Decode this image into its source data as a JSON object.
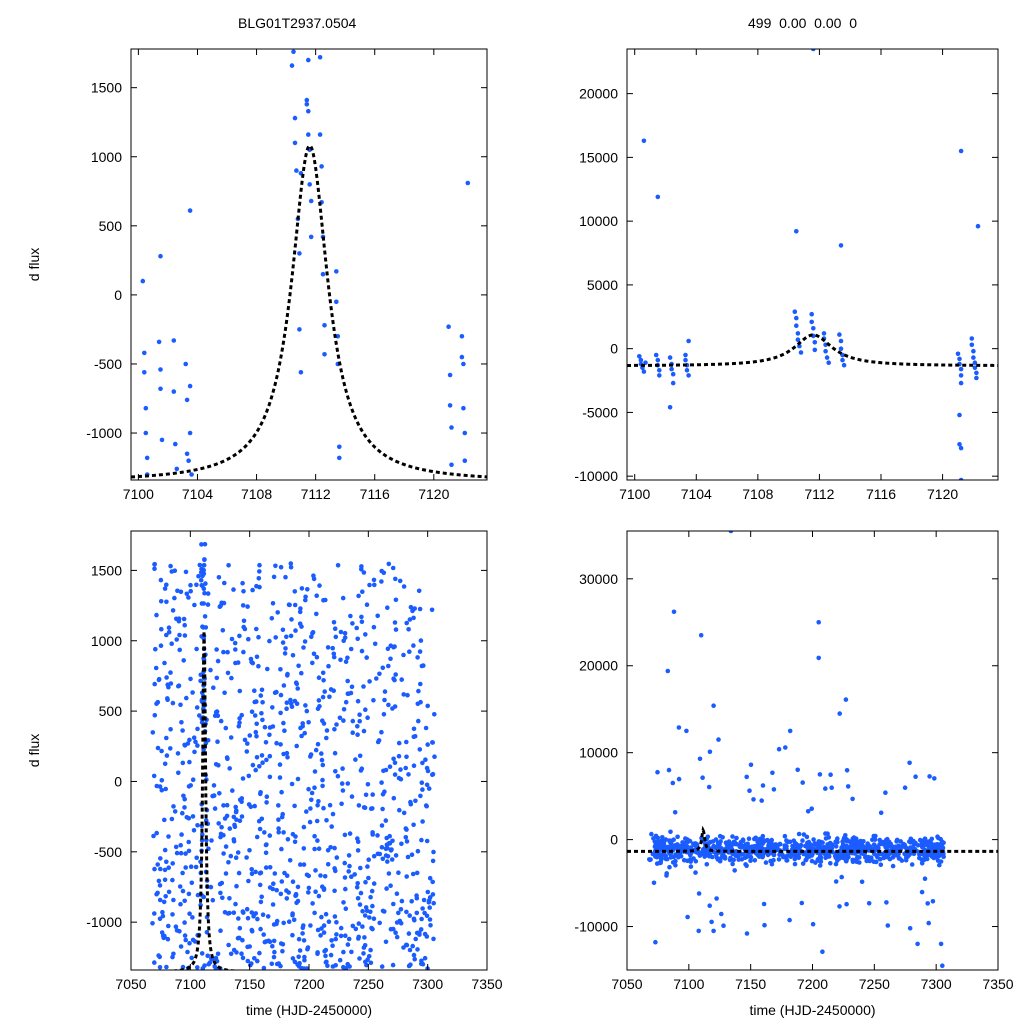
{
  "figure": {
    "title_left": "BLG01T2937.0504",
    "title_right": "499  0.00  0.00  0",
    "point_color": "#1a5cff",
    "curve_color": "#000000"
  },
  "chart_data": [
    {
      "id": "top-left",
      "type": "scatter",
      "xlim": [
        7099.5,
        7123.6
      ],
      "ylim": [
        -1340,
        1780
      ],
      "xticks": [
        7100,
        7104,
        7108,
        7112,
        7116,
        7120
      ],
      "xtick_labels": [
        "7100",
        "7104",
        "7108",
        "7112",
        "7116",
        "7120"
      ],
      "yticks": [
        -1000,
        -500,
        0,
        500,
        1000,
        1500
      ],
      "ytick_labels": [
        "-1000",
        "-500",
        "0",
        "500",
        "1000",
        "1500"
      ],
      "xlabel": "",
      "ylabel": "d flux",
      "model": {
        "t0": 7111.6,
        "peak": 1080,
        "base": -1355,
        "width": 1.5
      },
      "points": [
        [
          7100.3,
          100
        ],
        [
          7100.4,
          -420
        ],
        [
          7100.4,
          -560
        ],
        [
          7100.5,
          -820
        ],
        [
          7100.5,
          -1000
        ],
        [
          7100.6,
          -1180
        ],
        [
          7100.6,
          -1300
        ],
        [
          7101.4,
          -340
        ],
        [
          7101.5,
          -540
        ],
        [
          7101.5,
          -680
        ],
        [
          7101.6,
          -1050
        ],
        [
          7101.5,
          280
        ],
        [
          7102.4,
          -330
        ],
        [
          7102.4,
          -700
        ],
        [
          7102.5,
          -1080
        ],
        [
          7102.6,
          -1260
        ],
        [
          7103.2,
          -500
        ],
        [
          7103.3,
          -760
        ],
        [
          7103.3,
          -1150
        ],
        [
          7103.4,
          -1200
        ],
        [
          7103.5,
          610
        ],
        [
          7103.5,
          -660
        ],
        [
          7103.5,
          -1000
        ],
        [
          7103.6,
          -1300
        ],
        [
          7110.4,
          1660
        ],
        [
          7110.5,
          1760
        ],
        [
          7110.6,
          1280
        ],
        [
          7110.6,
          1100
        ],
        [
          7110.7,
          900
        ],
        [
          7110.8,
          550
        ],
        [
          7110.9,
          300
        ],
        [
          7110.9,
          -250
        ],
        [
          7111.0,
          -560
        ],
        [
          7111.0,
          880
        ],
        [
          7111.4,
          1410
        ],
        [
          7111.4,
          1380
        ],
        [
          7111.5,
          1330
        ],
        [
          7111.5,
          1160
        ],
        [
          7111.6,
          1050
        ],
        [
          7111.6,
          800
        ],
        [
          7111.7,
          680
        ],
        [
          7111.7,
          420
        ],
        [
          7111.5,
          1700
        ],
        [
          7112.3,
          1720
        ],
        [
          7112.3,
          1160
        ],
        [
          7112.4,
          930
        ],
        [
          7112.4,
          670
        ],
        [
          7112.5,
          420
        ],
        [
          7112.5,
          150
        ],
        [
          7112.6,
          -220
        ],
        [
          7112.6,
          -430
        ],
        [
          7113.4,
          170
        ],
        [
          7113.4,
          -50
        ],
        [
          7113.5,
          -300
        ],
        [
          7113.5,
          -500
        ],
        [
          7113.6,
          -1100
        ],
        [
          7113.6,
          -1180
        ],
        [
          7121.0,
          -230
        ],
        [
          7121.1,
          -580
        ],
        [
          7121.1,
          -800
        ],
        [
          7121.2,
          -960
        ],
        [
          7121.2,
          -1230
        ],
        [
          7121.9,
          -300
        ],
        [
          7121.9,
          -450
        ],
        [
          7122.0,
          -500
        ],
        [
          7122.0,
          -820
        ],
        [
          7122.1,
          -1000
        ],
        [
          7122.1,
          -1200
        ],
        [
          7122.3,
          810
        ]
      ]
    },
    {
      "id": "top-right",
      "type": "scatter",
      "xlim": [
        7099.5,
        7123.6
      ],
      "ylim": [
        -10300,
        23500
      ],
      "xticks": [
        7100,
        7104,
        7108,
        7112,
        7116,
        7120
      ],
      "xtick_labels": [
        "7100",
        "7104",
        "7108",
        "7112",
        "7116",
        "7120"
      ],
      "yticks": [
        -10000,
        -5000,
        0,
        5000,
        10000,
        15000,
        20000
      ],
      "ytick_labels": [
        "-10000",
        "-5000",
        "0",
        "5000",
        "10000",
        "15000",
        "20000"
      ],
      "xlabel": "",
      "ylabel": "",
      "model": {
        "t0": 7111.6,
        "peak": 1080,
        "base": -1355,
        "width": 1.5
      },
      "points": [
        [
          7100.6,
          16300
        ],
        [
          7101.5,
          11900
        ],
        [
          7110.5,
          9200
        ],
        [
          7111.6,
          23500
        ],
        [
          7113.4,
          8100
        ],
        [
          7121.2,
          15500
        ],
        [
          7122.3,
          9600
        ],
        [
          7102.3,
          -4600
        ],
        [
          7121.1,
          -5200
        ],
        [
          7121.1,
          -7500
        ],
        [
          7121.2,
          -7800
        ],
        [
          7121.2,
          -10300
        ],
        [
          7100.3,
          -600
        ],
        [
          7100.4,
          -900
        ],
        [
          7100.4,
          -1200
        ],
        [
          7100.5,
          -1500
        ],
        [
          7100.6,
          -1800
        ],
        [
          7100.7,
          -1100
        ],
        [
          7101.4,
          -500
        ],
        [
          7101.5,
          -900
        ],
        [
          7101.5,
          -1300
        ],
        [
          7101.6,
          -1700
        ],
        [
          7101.6,
          -2100
        ],
        [
          7102.3,
          -700
        ],
        [
          7102.4,
          -1200
        ],
        [
          7102.4,
          -1600
        ],
        [
          7102.5,
          -2000
        ],
        [
          7102.5,
          -2700
        ],
        [
          7103.3,
          -500
        ],
        [
          7103.3,
          -900
        ],
        [
          7103.4,
          -1300
        ],
        [
          7103.4,
          -1700
        ],
        [
          7103.5,
          -2100
        ],
        [
          7103.5,
          600
        ],
        [
          7110.4,
          2900
        ],
        [
          7110.5,
          2400
        ],
        [
          7110.5,
          1800
        ],
        [
          7110.6,
          1200
        ],
        [
          7110.6,
          700
        ],
        [
          7110.7,
          200
        ],
        [
          7110.8,
          -300
        ],
        [
          7111.5,
          2700
        ],
        [
          7111.5,
          2100
        ],
        [
          7111.6,
          1600
        ],
        [
          7111.6,
          1000
        ],
        [
          7111.7,
          500
        ],
        [
          7111.7,
          -100
        ],
        [
          7112.3,
          1200
        ],
        [
          7112.3,
          800
        ],
        [
          7112.4,
          300
        ],
        [
          7112.4,
          -200
        ],
        [
          7112.5,
          -700
        ],
        [
          7112.6,
          -1100
        ],
        [
          7113.3,
          1100
        ],
        [
          7113.4,
          600
        ],
        [
          7113.4,
          0
        ],
        [
          7113.5,
          -500
        ],
        [
          7113.5,
          -900
        ],
        [
          7113.6,
          -1300
        ],
        [
          7121.0,
          -400
        ],
        [
          7121.1,
          -800
        ],
        [
          7121.1,
          -1200
        ],
        [
          7121.2,
          -1600
        ],
        [
          7121.2,
          -2100
        ],
        [
          7121.2,
          -2700
        ],
        [
          7121.9,
          800
        ],
        [
          7121.9,
          300
        ],
        [
          7122.0,
          -200
        ],
        [
          7122.0,
          -700
        ],
        [
          7122.1,
          -1100
        ],
        [
          7122.1,
          -1500
        ],
        [
          7122.2,
          -1900
        ],
        [
          7122.2,
          -2300
        ]
      ]
    },
    {
      "id": "bottom-left",
      "type": "scatter",
      "xlim": [
        7050,
        7350
      ],
      "ylim": [
        -1340,
        1780
      ],
      "xticks": [
        7050,
        7100,
        7150,
        7200,
        7250,
        7300,
        7350
      ],
      "xtick_labels": [
        "7050",
        "7100",
        "7150",
        "7200",
        "7250",
        "7300",
        "7350"
      ],
      "yticks": [
        -1000,
        -500,
        0,
        500,
        1000,
        1500
      ],
      "ytick_labels": [
        "-1000",
        "-500",
        "0",
        "500",
        "1000",
        "1500"
      ],
      "xlabel": "time (HJD-2450000)",
      "ylabel": "d flux",
      "model": {
        "t0": 7111.6,
        "peak": 1080,
        "base": -1355,
        "width": 1.5
      },
      "scatter_params": {
        "n": 1100,
        "xrange": [
          7068,
          7306
        ],
        "yrange": [
          -1330,
          1550
        ],
        "seed": 7
      }
    },
    {
      "id": "bottom-right",
      "type": "scatter",
      "xlim": [
        7050,
        7350
      ],
      "ylim": [
        -15000,
        35500
      ],
      "xticks": [
        7050,
        7100,
        7150,
        7200,
        7250,
        7300,
        7350
      ],
      "xtick_labels": [
        "7050",
        "7100",
        "7150",
        "7200",
        "7250",
        "7300",
        "7350"
      ],
      "yticks": [
        -10000,
        0,
        10000,
        20000,
        30000
      ],
      "ytick_labels": [
        "-10000",
        "0",
        "10000",
        "20000",
        "30000"
      ],
      "xlabel": "time (HJD-2450000)",
      "ylabel": "",
      "model": {
        "t0": 7111.6,
        "peak": 1080,
        "base": -1355,
        "width": 1.5
      },
      "points": [
        [
          7088,
          26200
        ],
        [
          7110,
          23500
        ],
        [
          7134,
          35500
        ],
        [
          7205,
          25000
        ],
        [
          7205,
          20900
        ],
        [
          7083,
          19400
        ],
        [
          7120,
          15400
        ],
        [
          7092,
          12900
        ],
        [
          7098,
          12500
        ],
        [
          7084,
          8000
        ],
        [
          7117,
          10100
        ],
        [
          7124,
          11500
        ],
        [
          7173,
          10400
        ],
        [
          7178,
          10600
        ],
        [
          7182,
          12500
        ],
        [
          7222,
          14500
        ],
        [
          7227,
          16100
        ],
        [
          7206,
          7500
        ],
        [
          7109,
          9300
        ],
        [
          7108,
          -10500
        ],
        [
          7120,
          -10500
        ],
        [
          7073,
          -11800
        ],
        [
          7147,
          -10800
        ],
        [
          7208,
          -12900
        ],
        [
          7279,
          -10200
        ],
        [
          7285,
          -12000
        ],
        [
          7294,
          -9600
        ],
        [
          7304,
          -12000
        ],
        [
          7305,
          -14500
        ]
      ],
      "band_params": {
        "n": 900,
        "xrange": [
          7068,
          7306
        ],
        "center": -1200,
        "spread": 2200,
        "seed": 11
      }
    }
  ]
}
